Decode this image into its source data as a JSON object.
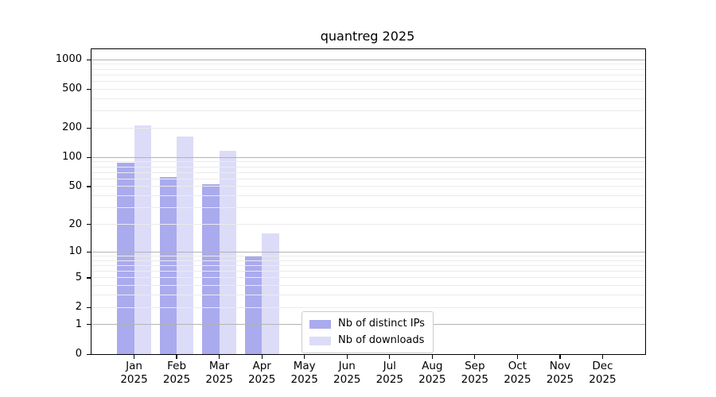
{
  "chart_data": {
    "type": "bar",
    "title": "quantreg 2025",
    "categories": [
      "Jan",
      "Feb",
      "Mar",
      "Apr",
      "May",
      "Jun",
      "Jul",
      "Aug",
      "Sep",
      "Oct",
      "Nov",
      "Dec"
    ],
    "x_year_label": "2025",
    "series": [
      {
        "name": "Nb of distinct IPs",
        "color": "#aaaaee",
        "values": [
          89,
          63,
          53,
          9,
          0,
          0,
          0,
          0,
          0,
          0,
          0,
          0
        ]
      },
      {
        "name": "Nb of downloads",
        "color": "#dcdcf8",
        "values": [
          212,
          164,
          116,
          16,
          0,
          0,
          0,
          0,
          0,
          0,
          0,
          0
        ]
      }
    ],
    "y_axis": {
      "ticks": [
        0,
        1,
        2,
        5,
        10,
        20,
        50,
        100,
        200,
        500,
        1000
      ],
      "scale": "log10(1+value)",
      "ylim": [
        0,
        1280
      ]
    },
    "grid": {
      "major_values": [
        1,
        10,
        100,
        1000
      ],
      "major_color": "#b3b3b3",
      "minor_color": "#ebebeb"
    },
    "legend": {
      "position": "lower center"
    }
  }
}
